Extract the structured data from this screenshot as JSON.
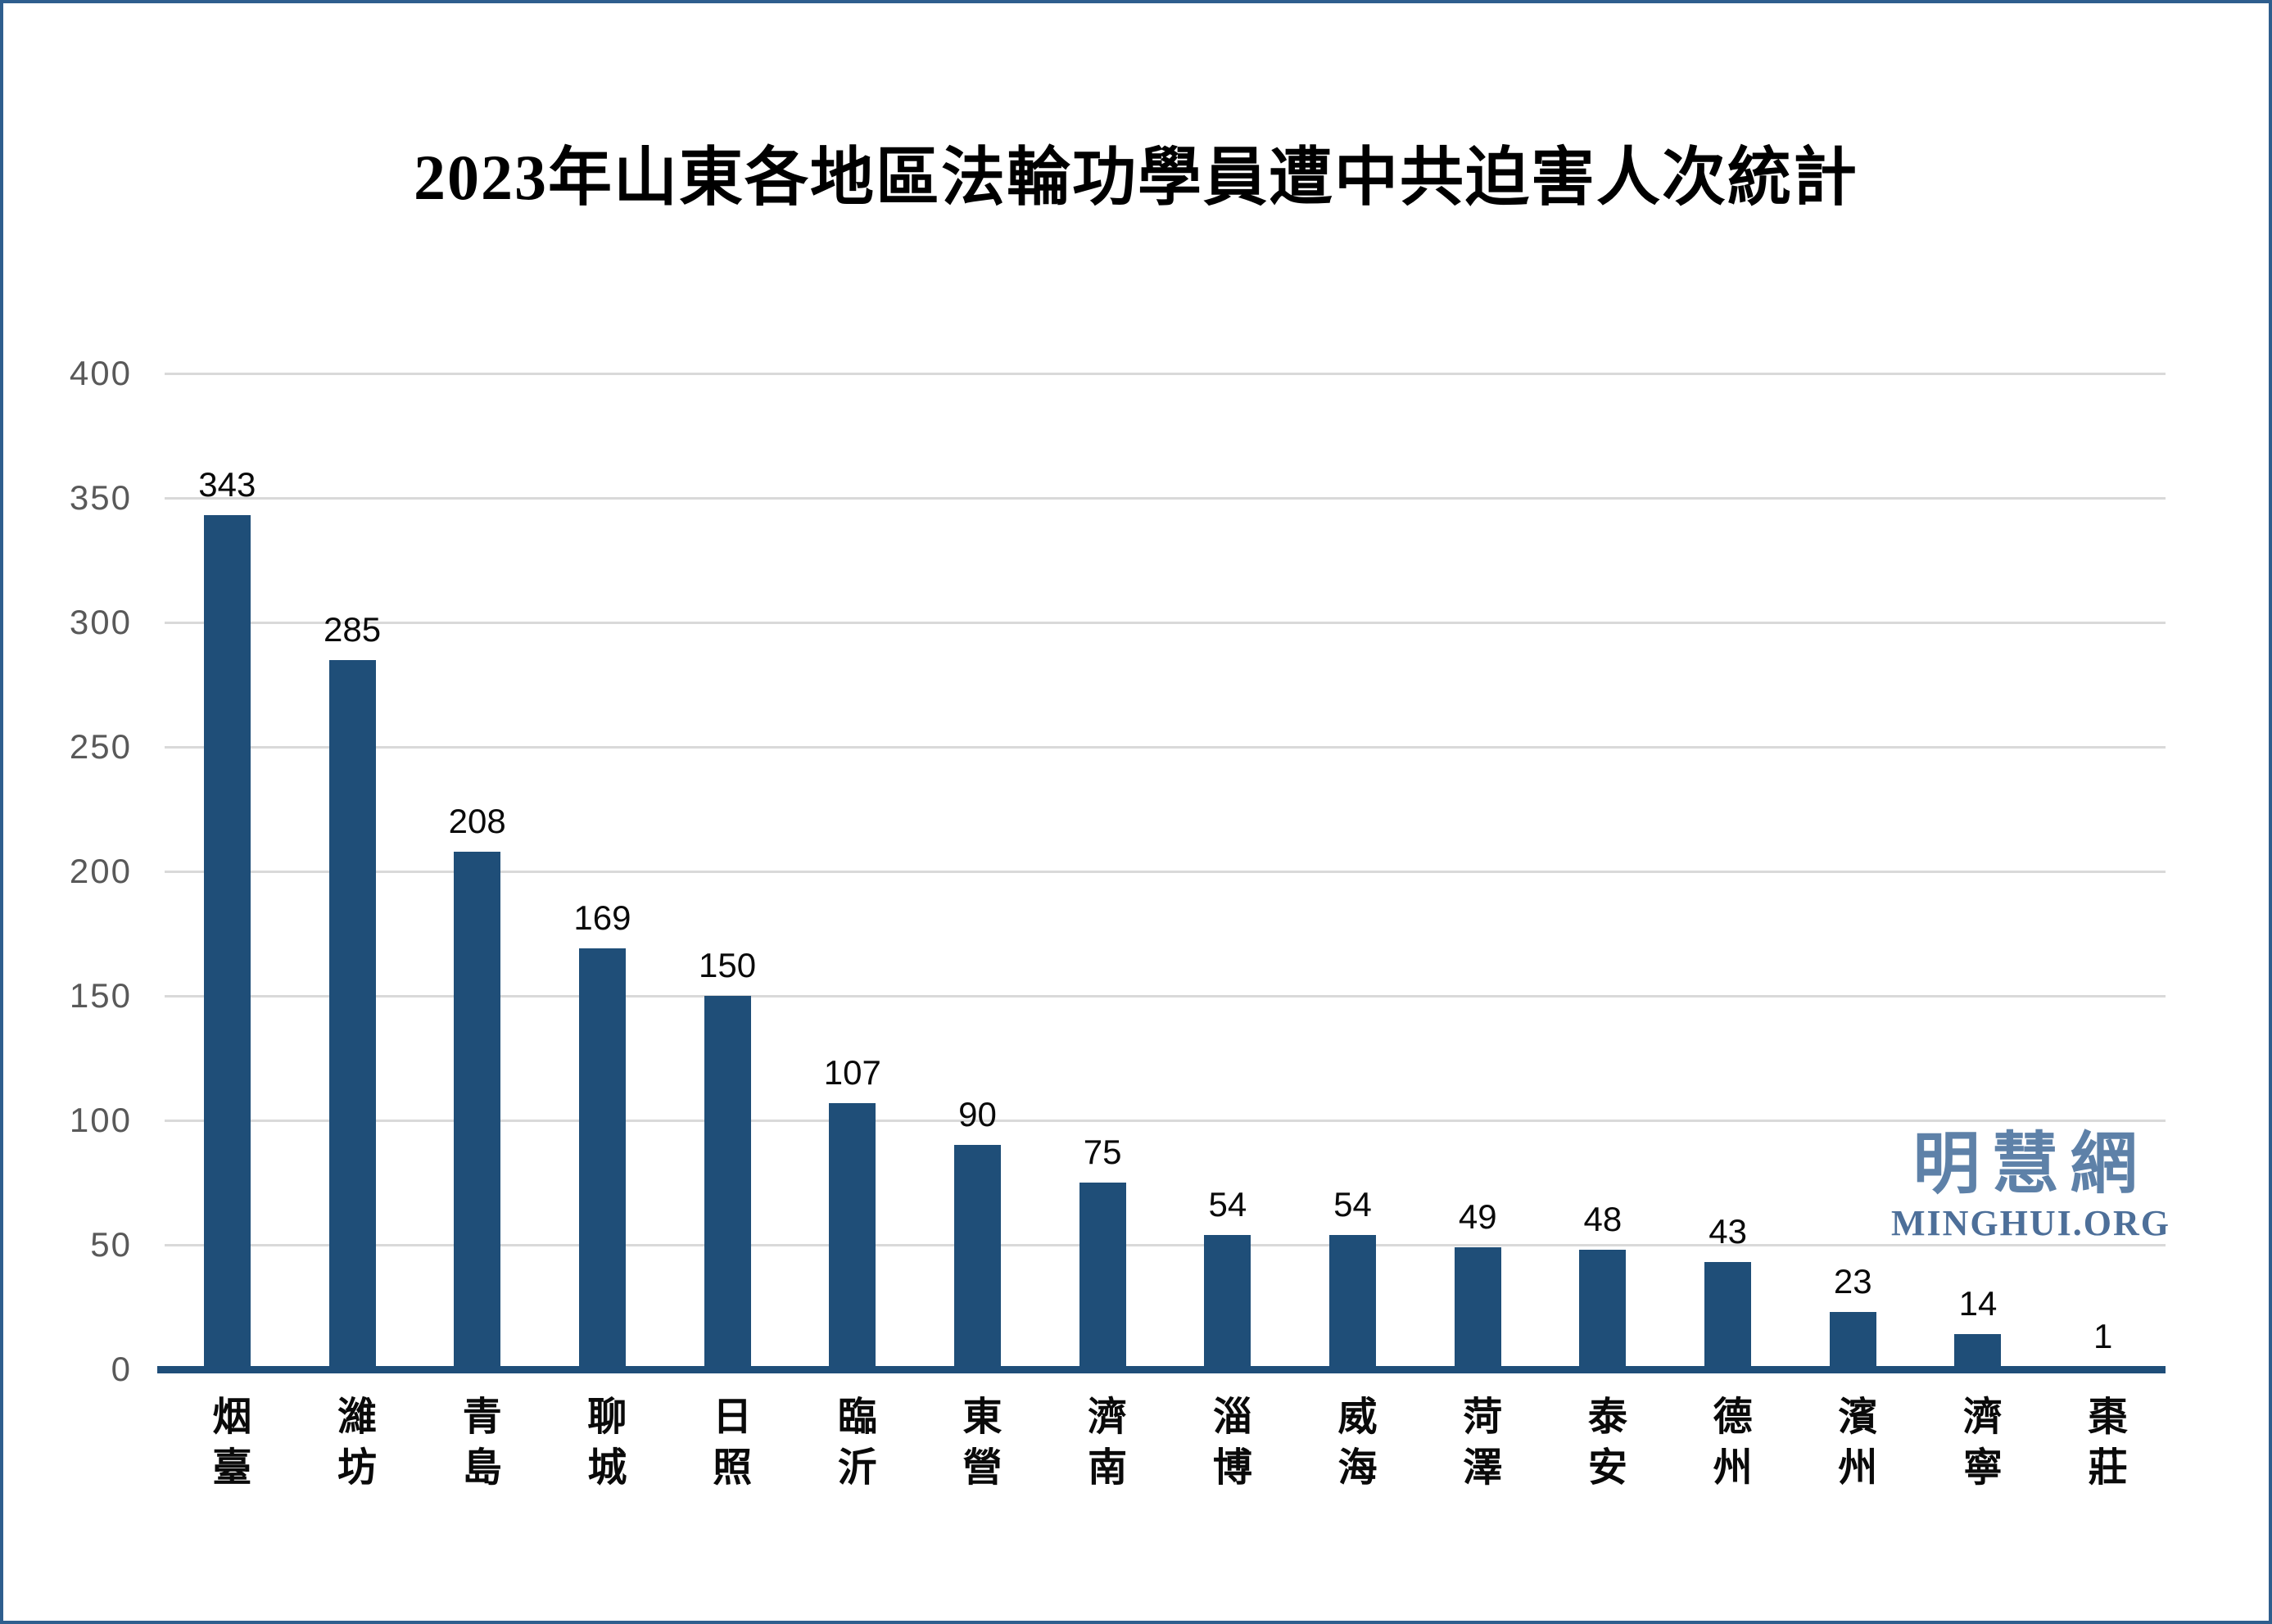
{
  "chart_data": {
    "type": "bar",
    "title": "2023年山東各地區法輪功學員遭中共迫害人次統計",
    "categories": [
      "烟臺",
      "濰坊",
      "青島",
      "聊城",
      "日照",
      "臨沂",
      "東營",
      "濟南",
      "淄博",
      "威海",
      "菏澤",
      "泰安",
      "德州",
      "濱州",
      "濟寧",
      "棗莊"
    ],
    "values": [
      343,
      285,
      208,
      169,
      150,
      107,
      90,
      75,
      54,
      54,
      49,
      48,
      43,
      23,
      14,
      1
    ],
    "xlabel": "",
    "ylabel": "",
    "ylim": [
      0,
      400
    ],
    "y_ticks": [
      400,
      350,
      300,
      250,
      200,
      150,
      100,
      50,
      0
    ],
    "grid": true,
    "legend": "none",
    "bar_labels_shown": true
  },
  "watermark": {
    "cjk": "明慧網",
    "latin": "MINGHUI.ORG"
  },
  "colors": {
    "bar": "#1F4E78",
    "axis_line": "#1F4E79",
    "gridline": "#D9D9D9",
    "y_tick_text": "#595959",
    "value_label_text": "#0a0a0a",
    "x_tick_text": "#0a0a0a",
    "title_text": "#000000",
    "watermark_cjk": "#5E81A8",
    "watermark_latin": "#4D6F99",
    "frame_border": "#2E5E8E",
    "background": "#ffffff"
  }
}
